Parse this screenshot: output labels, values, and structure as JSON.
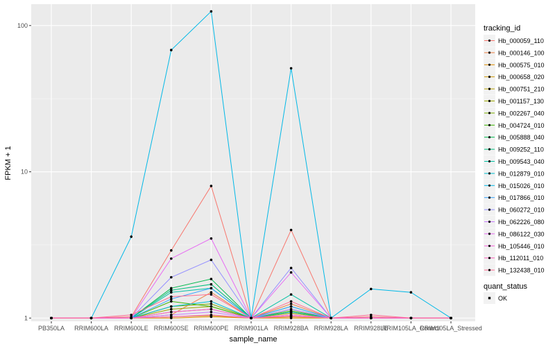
{
  "chart_data": {
    "type": "line",
    "title": "",
    "xlabel": "sample_name",
    "ylabel": "FPKM + 1",
    "y_scale": "log10",
    "ylim": [
      0.95,
      140
    ],
    "y_ticks": [
      1,
      10,
      100
    ],
    "y_tick_labels": [
      "1",
      "10",
      "100"
    ],
    "grid": true,
    "legend_position": "right",
    "categories": [
      "PB350LA",
      "RRIM600LA",
      "RRIM600LE",
      "RRIM600SE",
      "RRIM600PE",
      "RRIM901LA",
      "RRIM928BA",
      "RRIM928LA",
      "RRIM928LE",
      "RRIM105LA_Control",
      "RRIM105LA_Stressed"
    ],
    "legend_title": "tracking_id",
    "series": [
      {
        "name": "Hb_000059_110",
        "color": "#F8766D",
        "values": [
          1,
          1,
          1.02,
          2.9,
          8.0,
          1,
          4.0,
          1,
          1.02,
          1,
          1
        ]
      },
      {
        "name": "Hb_000146_100",
        "color": "#EE8044",
        "values": [
          1,
          1,
          1.0,
          1.05,
          1.5,
          1,
          1.25,
          1,
          1,
          1,
          1
        ]
      },
      {
        "name": "Hb_000575_010",
        "color": "#E08B00",
        "values": [
          1,
          1,
          1.0,
          1.0,
          1.02,
          1,
          1.0,
          1,
          1,
          1,
          1
        ]
      },
      {
        "name": "Hb_000658_020",
        "color": "#CE9500",
        "values": [
          1,
          1,
          1.0,
          1.02,
          1.04,
          1,
          1.02,
          1,
          1,
          1,
          1
        ]
      },
      {
        "name": "Hb_000751_210",
        "color": "#B79F00",
        "values": [
          1,
          1,
          1.0,
          1.1,
          1.15,
          1,
          1.05,
          1,
          1,
          1,
          1
        ]
      },
      {
        "name": "Hb_001157_130",
        "color": "#9DA700",
        "values": [
          1,
          1,
          1.0,
          1.15,
          1.2,
          1,
          1.08,
          1,
          1,
          1,
          1
        ]
      },
      {
        "name": "Hb_002267_040",
        "color": "#7CAE00",
        "values": [
          1,
          1,
          1.0,
          1.2,
          1.25,
          1,
          1.1,
          1,
          1,
          1,
          1
        ]
      },
      {
        "name": "Hb_004724_010",
        "color": "#39B600",
        "values": [
          1,
          1,
          1.0,
          1.3,
          1.2,
          1,
          1.12,
          1,
          1,
          1,
          1
        ]
      },
      {
        "name": "Hb_005888_040",
        "color": "#00BB4E",
        "values": [
          1,
          1,
          1.0,
          1.6,
          1.85,
          1,
          1.15,
          1,
          1,
          1,
          1
        ]
      },
      {
        "name": "Hb_009252_110",
        "color": "#00BF7D",
        "values": [
          1,
          1,
          1.0,
          1.55,
          1.7,
          1,
          1.2,
          1,
          1,
          1,
          1
        ]
      },
      {
        "name": "Hb_009543_040",
        "color": "#00C1A3",
        "values": [
          1,
          1,
          1.0,
          1.5,
          1.6,
          1,
          1.45,
          1,
          1,
          1,
          1
        ]
      },
      {
        "name": "Hb_012879_010",
        "color": "#00BDD0",
        "values": [
          1,
          1,
          1.0,
          1.2,
          1.3,
          1,
          1.1,
          1,
          1,
          1,
          1
        ]
      },
      {
        "name": "Hb_015026_010",
        "color": "#00B8E7",
        "values": [
          1,
          1,
          3.6,
          68,
          125,
          1,
          51,
          1,
          1.58,
          1.5,
          1
        ]
      },
      {
        "name": "Hb_017866_010",
        "color": "#35A2FF",
        "values": [
          1,
          1,
          1.0,
          1.35,
          1.6,
          1,
          1.2,
          1,
          1,
          1,
          1
        ]
      },
      {
        "name": "Hb_060272_010",
        "color": "#9590FF",
        "values": [
          1,
          1,
          1.0,
          1.9,
          2.5,
          1,
          2.2,
          1,
          1,
          1,
          1
        ]
      },
      {
        "name": "Hb_062226_080",
        "color": "#C77CFF",
        "values": [
          1,
          1,
          1.0,
          1.05,
          1.1,
          1,
          1.15,
          1,
          1,
          1,
          1
        ]
      },
      {
        "name": "Hb_086122_030",
        "color": "#E76BF3",
        "values": [
          1,
          1,
          1.0,
          2.55,
          3.5,
          1,
          2.05,
          1,
          1,
          1,
          1
        ]
      },
      {
        "name": "Hb_105446_010",
        "color": "#FA62DB",
        "values": [
          1,
          1,
          1.0,
          1.1,
          1.15,
          1,
          1.05,
          1,
          1,
          1,
          1
        ]
      },
      {
        "name": "Hb_112011_010",
        "color": "#FF62BC",
        "values": [
          1,
          1,
          1.0,
          1.02,
          1.05,
          1,
          1.03,
          1,
          1,
          1,
          1
        ]
      },
      {
        "name": "Hb_132438_010",
        "color": "#FF6C91",
        "values": [
          1,
          1,
          1.05,
          1.4,
          1.45,
          1,
          1.3,
          1,
          1.05,
          1,
          1
        ]
      }
    ],
    "legend2_title": "quant_status",
    "legend2_items": [
      "OK"
    ],
    "panel_bg": "#EBEBEB",
    "grid_color": "#FFFFFF"
  }
}
